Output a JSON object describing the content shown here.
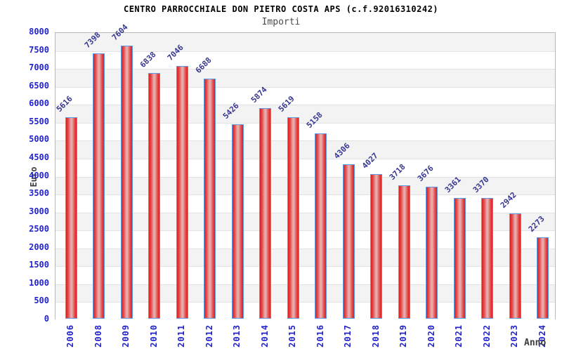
{
  "header": {
    "title": "CENTRO PARROCCHIALE DON PIETRO COSTA APS (c.f.92016310242)",
    "subtitle": "Importi"
  },
  "chart_data": {
    "type": "bar",
    "title": "CENTRO PARROCCHIALE DON PIETRO COSTA APS (c.f.92016310242)",
    "subtitle": "Importi",
    "xlabel": "Anno",
    "ylabel": "Euro",
    "categories": [
      "2006",
      "2008",
      "2009",
      "2010",
      "2011",
      "2012",
      "2013",
      "2014",
      "2015",
      "2016",
      "2017",
      "2018",
      "2019",
      "2020",
      "2021",
      "2022",
      "2023",
      "2024"
    ],
    "values": [
      5616,
      7398,
      7604,
      6838,
      7046,
      6688,
      5426,
      5874,
      5619,
      5158,
      4306,
      4027,
      3718,
      3676,
      3361,
      3370,
      2942,
      2273
    ],
    "ylim": [
      0,
      8000
    ],
    "ytick_step": 500,
    "legend": "none",
    "grid": "horizontal-bands-alternating",
    "colors": {
      "bar_border": "#5c9ce6",
      "bar_edge_red": "#dc1f1f",
      "bar_mid_red": "#e45050",
      "bar_center_light": "#e9adad",
      "axis_tick_label": "#2323cc",
      "value_label": "#363690",
      "band_gray": "#f3f3f3",
      "band_white": "#ffffff",
      "gridline": "#e2e2e2",
      "plot_border": "#b8b8b8",
      "title_color": "#000000",
      "subtitle_color": "#4a4a4a",
      "axis_title_color": "#3c3c3c"
    }
  }
}
